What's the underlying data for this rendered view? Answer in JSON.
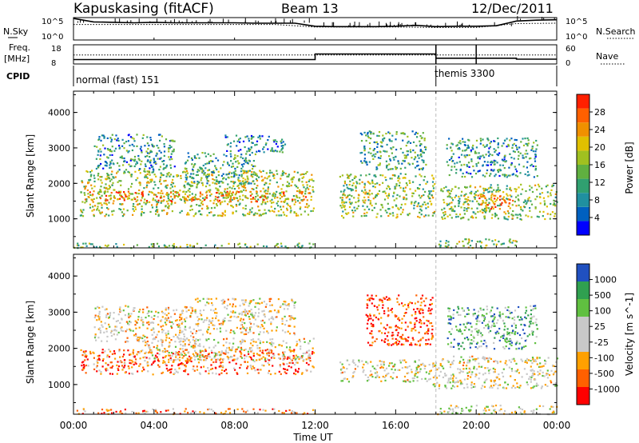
{
  "header": {
    "station": "Kapuskasing (fitACF)",
    "beam": "Beam 13",
    "date": "12/Dec/2011"
  },
  "colors": {
    "axis": "#000000",
    "scatter_gray": "#c0c0c0"
  },
  "chart_data": [
    {
      "type": "line",
      "panel": "noise",
      "left_label": "N.Sky",
      "right_label": "N.Search",
      "left_ticks": [
        "10^5",
        "10^0"
      ],
      "right_ticks": [
        "10^5",
        "10^0"
      ],
      "series": [
        {
          "name": "N.Sky",
          "x": [
            0,
            1,
            2,
            3,
            4,
            5,
            6,
            7,
            8,
            9,
            10,
            11,
            12,
            13,
            14,
            15,
            16,
            17,
            18,
            19,
            20,
            21,
            22,
            23,
            24
          ],
          "values": [
            5.0,
            4.2,
            4.1,
            4.0,
            4.1,
            4.0,
            4.0,
            4.0,
            4.0,
            3.9,
            3.9,
            3.9,
            3.2,
            3.1,
            3.1,
            3.1,
            3.2,
            3.4,
            3.1,
            3.2,
            3.2,
            3.3,
            4.4,
            4.6,
            4.7
          ]
        },
        {
          "name": "N.Search",
          "x": [
            0,
            2,
            4,
            6,
            8,
            10,
            12,
            14,
            16,
            18,
            20,
            22,
            24
          ],
          "values": [
            3.6,
            3.6,
            3.6,
            3.6,
            3.6,
            3.6,
            3.0,
            3.0,
            3.0,
            2.9,
            2.9,
            3.8,
            3.9
          ]
        }
      ]
    },
    {
      "type": "line",
      "panel": "frequency",
      "left_label": "Freq.",
      "left_unit": "[MHz]",
      "right_label": "Nave",
      "left_ticks": [
        "18",
        "8"
      ],
      "right_ticks": [
        "60",
        "0"
      ],
      "series": [
        {
          "name": "Freq.",
          "x": [
            0,
            12,
            12,
            18,
            18,
            22,
            22,
            24
          ],
          "values": [
            10.3,
            10.3,
            13.2,
            13.2,
            11.0,
            11.0,
            10.5,
            10.5
          ]
        },
        {
          "name": "Nave",
          "x": [
            0,
            24
          ],
          "values": [
            28,
            28
          ]
        }
      ]
    },
    {
      "type": "table",
      "panel": "cpid",
      "label": "CPID",
      "segments": [
        {
          "start": 0,
          "name": "normal (fast) 151"
        },
        {
          "start": 18,
          "name": "themis 3300"
        }
      ]
    },
    {
      "type": "heatmap",
      "panel": "power",
      "ylabel": "Slant Range [km]",
      "ylim": [
        180,
        4600
      ],
      "yticks": [
        "1000",
        "2000",
        "3000",
        "4000"
      ],
      "colorbar_label": "Power [dB]",
      "colorbar_ticks": [
        "28",
        "24",
        "20",
        "16",
        "12",
        "8",
        "4"
      ],
      "colors": [
        "#0000ff",
        "#0060c0",
        "#2090a0",
        "#30a070",
        "#60b040",
        "#a0c020",
        "#e0c000",
        "#f09000",
        "#ff6000",
        "#ff2000"
      ],
      "regions": [
        {
          "t0": 0.3,
          "t1": 11.9,
          "r0": 1100,
          "r1": 2400,
          "level": 0.55
        },
        {
          "t0": 0.5,
          "t1": 11.8,
          "r0": 1500,
          "r1": 1800,
          "level": 0.75
        },
        {
          "t0": 1.0,
          "t1": 5.0,
          "r0": 2400,
          "r1": 3400,
          "level": 0.3
        },
        {
          "t0": 5.5,
          "t1": 9.0,
          "r0": 2000,
          "r1": 2900,
          "level": 0.35
        },
        {
          "t0": 7.5,
          "t1": 10.5,
          "r0": 2900,
          "r1": 3400,
          "level": 0.25
        },
        {
          "t0": 13.2,
          "t1": 17.9,
          "r0": 1050,
          "r1": 2300,
          "level": 0.5
        },
        {
          "t0": 14.2,
          "t1": 17.5,
          "r0": 2400,
          "r1": 3500,
          "level": 0.35
        },
        {
          "t0": 18.2,
          "t1": 24.0,
          "r0": 1000,
          "r1": 2000,
          "level": 0.5
        },
        {
          "t0": 20.0,
          "t1": 22.0,
          "r0": 1300,
          "r1": 1700,
          "level": 0.8
        },
        {
          "t0": 18.5,
          "t1": 23.0,
          "r0": 2200,
          "r1": 3300,
          "level": 0.3
        },
        {
          "t0": 0.0,
          "t1": 12.0,
          "r0": 200,
          "r1": 330,
          "level": 0.45
        },
        {
          "t0": 18.0,
          "t1": 22.0,
          "r0": 200,
          "r1": 450,
          "level": 0.5
        }
      ]
    },
    {
      "type": "heatmap",
      "panel": "velocity",
      "ylabel": "Slant Range [km]",
      "ylim": [
        180,
        4600
      ],
      "yticks": [
        "1000",
        "2000",
        "3000",
        "4000"
      ],
      "colorbar_label": "Velocity [m s^-1]",
      "colorbar_ticks": [
        "1000",
        "500",
        "100",
        "25",
        "-25",
        "-100",
        "-500",
        "-1000"
      ],
      "colors": [
        "#ff0000",
        "#ff6000",
        "#ffa000",
        "#c8c8c8",
        "#c8c8c8",
        "#60c040",
        "#30a050",
        "#2050c0"
      ],
      "regions": [
        {
          "t0": 0.3,
          "t1": 11.9,
          "r0": 1300,
          "r1": 2000,
          "level": 0.2
        },
        {
          "t0": 3.5,
          "t1": 11.9,
          "r0": 1700,
          "r1": 2300,
          "level": 0.45
        },
        {
          "t0": 1.0,
          "t1": 6.0,
          "r0": 2200,
          "r1": 3200,
          "level": 0.45
        },
        {
          "t0": 6.0,
          "t1": 11.0,
          "r0": 2400,
          "r1": 3400,
          "level": 0.45
        },
        {
          "t0": 13.2,
          "t1": 17.8,
          "r0": 1100,
          "r1": 1700,
          "level": 0.48
        },
        {
          "t0": 14.5,
          "t1": 17.8,
          "r0": 2100,
          "r1": 3500,
          "level": 0.1
        },
        {
          "t0": 17.8,
          "t1": 24.0,
          "r0": 900,
          "r1": 1800,
          "level": 0.48
        },
        {
          "t0": 18.5,
          "t1": 23.0,
          "r0": 2000,
          "r1": 3200,
          "level": 0.75
        },
        {
          "t0": 0.0,
          "t1": 12.0,
          "r0": 200,
          "r1": 350,
          "level": 0.3
        },
        {
          "t0": 18.0,
          "t1": 24.0,
          "r0": 200,
          "r1": 450,
          "level": 0.5
        }
      ]
    }
  ],
  "xaxis": {
    "label": "Time UT",
    "ticks": [
      "00:00",
      "04:00",
      "08:00",
      "12:00",
      "16:00",
      "20:00",
      "00:00"
    ],
    "range": [
      0,
      24
    ]
  }
}
